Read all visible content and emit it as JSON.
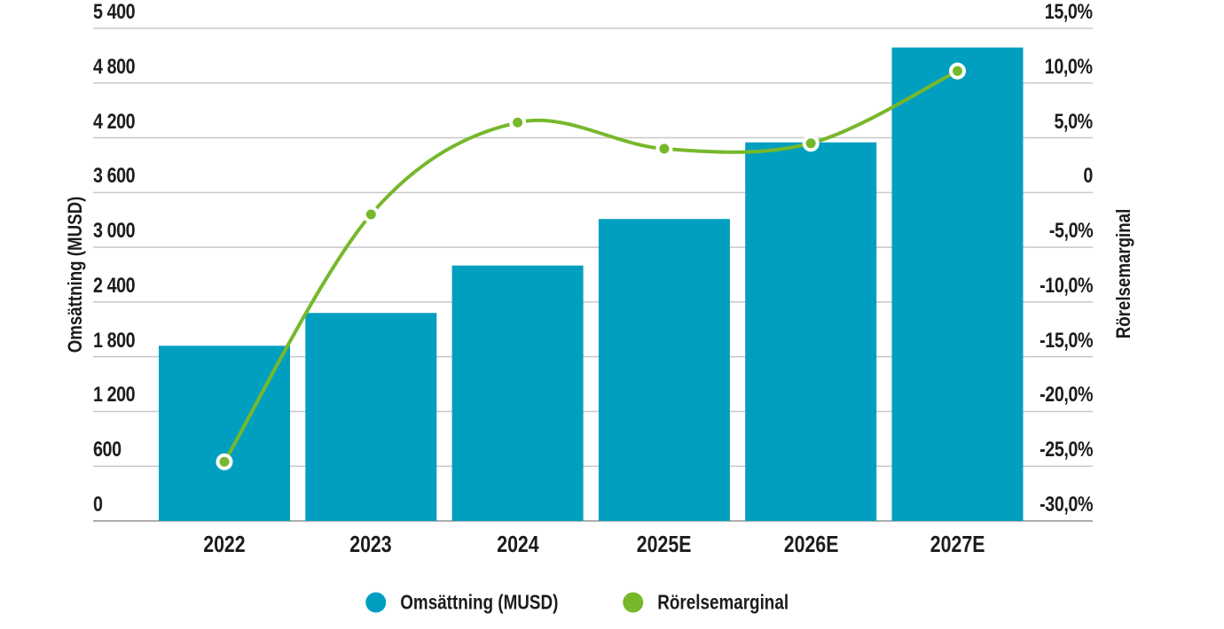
{
  "chart_data": {
    "type": "bar",
    "subtype": "combo-bar-line-dual-axis",
    "categories": [
      "2022",
      "2023",
      "2024",
      "2025E",
      "2026E",
      "2027E"
    ],
    "series": [
      {
        "name": "Omsättning (MUSD)",
        "type": "bar",
        "axis": "left",
        "color": "#009FC0",
        "values": [
          1920,
          2280,
          2800,
          3310,
          4150,
          5190
        ]
      },
      {
        "name": "Rörelsemarginal",
        "type": "line",
        "axis": "right",
        "color": "#76B82B",
        "marker": "circle-white-ring",
        "values": [
          -24.6,
          -2.0,
          6.4,
          4.0,
          4.5,
          11.1
        ]
      }
    ],
    "title": "",
    "xlabel": "",
    "left_axis": {
      "title": "Omsättning (MUSD)",
      "min": 0,
      "max": 5400,
      "step": 600,
      "tick_labels": [
        "0",
        "600",
        "1 200",
        "1 800",
        "2 400",
        "3 000",
        "3 600",
        "4 200",
        "4 800",
        "5 400"
      ]
    },
    "right_axis": {
      "title": "Rörelsemarginal",
      "min": -30,
      "max": 15,
      "step": 5,
      "tick_labels": [
        "-30,0%",
        "-25,0%",
        "-20,0%",
        "-15,0%",
        "-10,0%",
        "-5,0%",
        "0",
        "5,0%",
        "10,0%",
        "15,0%"
      ]
    },
    "grid": true,
    "gridline_color": "#c8c8c8",
    "baseline_color": "#aeaeae",
    "legend_position": "bottom",
    "legend": [
      "Omsättning (MUSD)",
      "Rörelsemarginal"
    ]
  }
}
